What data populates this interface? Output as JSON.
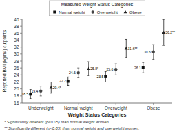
{
  "chart_data": {
    "type": "errorbar",
    "title": "Measured Weight Status Categories",
    "x_label": "Weight Status Categories",
    "y_label": "Reported BMI (kg/m²) cutpoints",
    "categories": [
      "Underweight",
      "Normal weight",
      "Overweight",
      "Obese"
    ],
    "ylim": [
      16,
      40
    ],
    "yticks": [
      16,
      18,
      20,
      22,
      24,
      26,
      28,
      30,
      32,
      34,
      36,
      38,
      40
    ],
    "grid": false,
    "legend": "top",
    "data_labels": true,
    "series": [
      {
        "name": "Normal weight",
        "color": "#111111",
        "marker": "square",
        "values": [
          18.5,
          22.2,
          23.5,
          26.1
        ],
        "ci_low": [
          17.2,
          21.0,
          22.0,
          24.6
        ],
        "ci_high": [
          19.8,
          23.4,
          25.0,
          27.6
        ]
      },
      {
        "name": "Overweight",
        "color": "#444444",
        "marker": "circle",
        "values": [
          19.4,
          24.6,
          25.6,
          30.6
        ],
        "ci_low": [
          18.0,
          23.2,
          24.0,
          28.5
        ],
        "ci_high": [
          20.8,
          26.0,
          27.2,
          32.7
        ]
      },
      {
        "name": "Obese",
        "color": "#222222",
        "marker": "triangle",
        "values": [
          20.4,
          25.8,
          31.6,
          36.2
        ],
        "value_labels": [
          "20.4*",
          "25.8*",
          "31.6**",
          "36.2**"
        ],
        "ci_low": [
          18.8,
          23.8,
          29.0,
          32.5
        ],
        "ci_high": [
          22.0,
          27.8,
          34.2,
          40.0
        ]
      }
    ],
    "annotations": [
      "* Significantly different (p<0.05) than normal weight women.",
      "** Significantly different (p<0.05) than normal weight and overweight women."
    ]
  }
}
